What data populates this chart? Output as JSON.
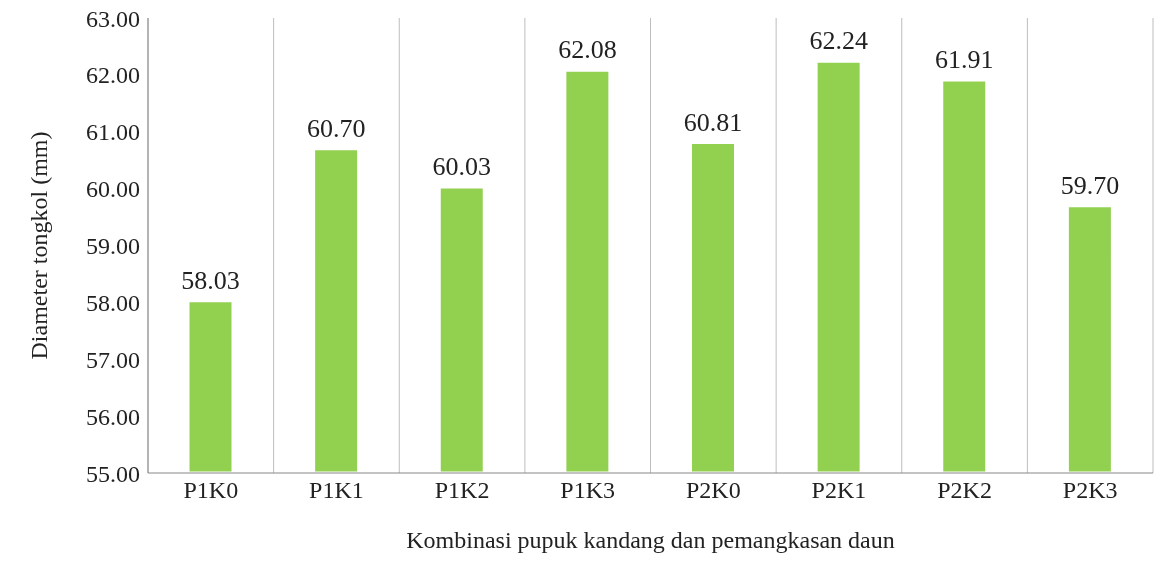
{
  "chart_data": {
    "type": "bar",
    "xlabel": "Kombinasi pupuk kandang  dan pemangkasan  daun",
    "ylabel": "Diameter tongkol (mm)",
    "categories": [
      "P1K0",
      "P1K1",
      "P1K2",
      "P1K3",
      "P2K0",
      "P2K1",
      "P2K2",
      "P2K3"
    ],
    "values": [
      58.03,
      60.7,
      60.03,
      62.08,
      60.81,
      62.24,
      61.91,
      59.7
    ],
    "value_labels": [
      "58.03",
      "60.70",
      "60.03",
      "62.08",
      "60.81",
      "62.24",
      "61.91",
      "59.70"
    ],
    "color": "#92d050",
    "ylim": [
      55,
      63
    ],
    "yticks": [
      {
        "value": 55,
        "label": "55.00"
      },
      {
        "value": 56,
        "label": "56.00"
      },
      {
        "value": 57,
        "label": "57.00"
      },
      {
        "value": 58,
        "label": "58.00"
      },
      {
        "value": 59,
        "label": "59.00"
      },
      {
        "value": 60,
        "label": "60.00"
      },
      {
        "value": 61,
        "label": "61.00"
      },
      {
        "value": 62,
        "label": "62.00"
      },
      {
        "value": 63,
        "label": "63.00"
      }
    ],
    "grid": "x",
    "legend": false
  }
}
